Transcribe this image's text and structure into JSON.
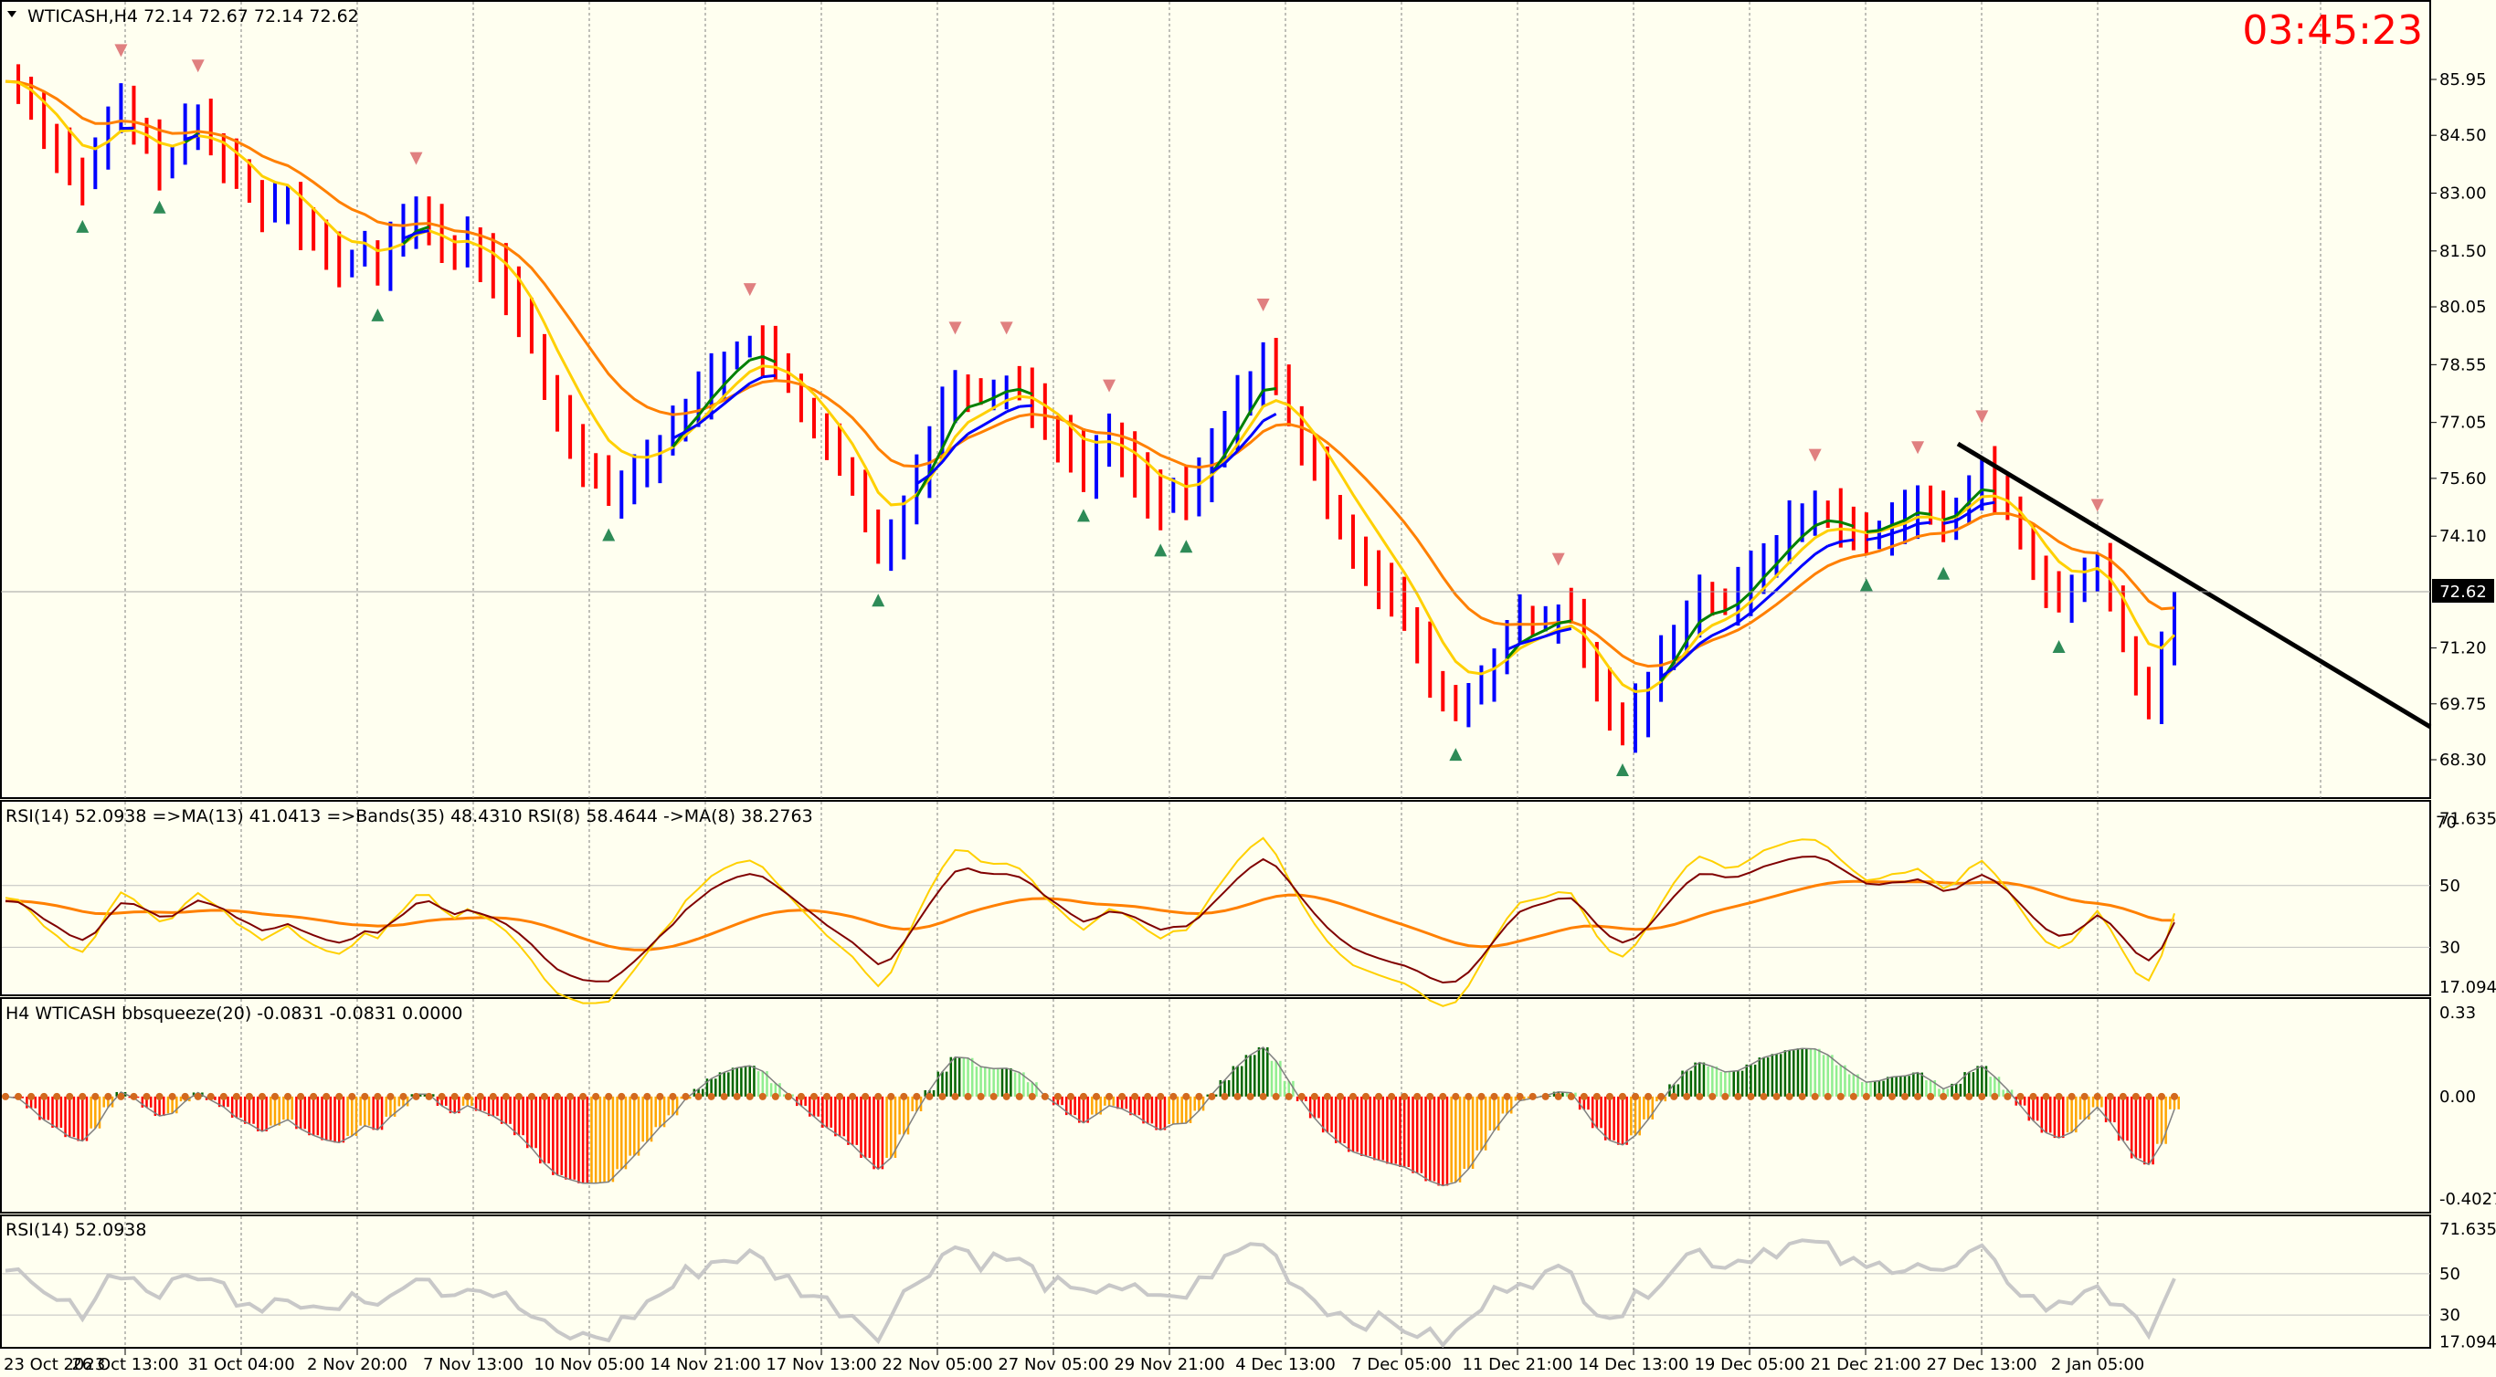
{
  "main_panel": {
    "header": "WTICASH,H4  72.14 72.67 72.14 72.62",
    "timer": "03:45:23",
    "current_price": "72.62",
    "price_min": 67.4,
    "price_max": 87.3,
    "ticks": [
      "85.95",
      "84.50",
      "83.00",
      "81.50",
      "80.05",
      "78.55",
      "77.05",
      "75.60",
      "74.10",
      "72.62",
      "71.20",
      "69.75",
      "68.30"
    ],
    "tick_values": [
      85.95,
      84.5,
      83.0,
      81.5,
      80.05,
      78.55,
      77.05,
      75.6,
      74.1,
      72.62,
      71.2,
      69.75,
      68.3
    ]
  },
  "rsi_panel": {
    "header": "RSI(14) 52.0938  =>MA(13) 41.0413  =>Bands(35) 48.4310  RSI(8) 58.4644  ->MA(8) 38.2763",
    "ticks": [
      "71.6354",
      "50",
      "30",
      "17.0949"
    ],
    "tick_values": [
      71.6354,
      50,
      30,
      17.0949
    ],
    "top_label": "70",
    "top_label_value": 70,
    "min": 15,
    "max": 76
  },
  "squeeze_panel": {
    "header": "H4 WTICASH bbsqueeze(20) -0.0831 -0.0831 0.0000",
    "ticks": [
      "0.33",
      "0.00",
      "-0.4027"
    ],
    "tick_values": [
      0.33,
      0.0,
      -0.4027
    ],
    "min": -0.45,
    "max": 0.37
  },
  "rsi2_panel": {
    "header": "RSI(14) 52.0938",
    "ticks": [
      "71.6354",
      "50",
      "30",
      "17.0949"
    ],
    "tick_values": [
      71.6354,
      50,
      30,
      17.0949
    ],
    "min": 15,
    "max": 76
  },
  "time_labels": [
    "23 Oct 2023",
    "26 Oct 13:00",
    "31 Oct 04:00",
    "2 Nov 20:00",
    "7 Nov 13:00",
    "10 Nov 05:00",
    "14 Nov 21:00",
    "17 Nov 13:00",
    "22 Nov 05:00",
    "27 Nov 05:00",
    "29 Nov 21:00",
    "4 Dec 13:00",
    "7 Dec 05:00",
    "11 Dec 21:00",
    "14 Dec 13:00",
    "19 Dec 05:00",
    "21 Dec 21:00",
    "27 Dec 13:00",
    "2 Jan 05:00"
  ],
  "colors": {
    "background": "#fffff0",
    "bear": "#ff0000",
    "bull": "#0000ff",
    "ma_fast": "#ffd000",
    "ma_slow": "#ff8000",
    "ma_green": "#008000",
    "ma_blue": "#0000ff",
    "trendline": "#000000",
    "rsi_main": "#800000",
    "rsi_fast": "#ffd000",
    "rsi_bands": "#ff8000",
    "hist_pos_dark": "#006400",
    "hist_pos_light": "#90ee90",
    "hist_neg_dark": "#ff0000",
    "hist_neg_light": "#ffa500",
    "squeeze_dot": "#d2691e",
    "rsi2_line": "#c8c8c8"
  },
  "chart_data": {
    "type": "candlestick",
    "symbol": "WTICASH",
    "timeframe": "H4",
    "ohlc_last": {
      "open": 72.14,
      "high": 72.67,
      "low": 72.14,
      "close": 72.62
    },
    "close_path": [
      85.9,
      85.8,
      85.2,
      84.6,
      84.2,
      83.6,
      83.3,
      83.9,
      84.8,
      85.3,
      84.7,
      84.2,
      83.8,
      84.0,
      84.6,
      84.9,
      84.3,
      84.0,
      83.4,
      83.1,
      82.6,
      82.9,
      83.0,
      82.2,
      81.8,
      81.4,
      81.1,
      81.3,
      81.6,
      81.0,
      81.7,
      82.0,
      82.5,
      82.3,
      81.6,
      81.3,
      81.8,
      81.3,
      81.0,
      80.5,
      79.8,
      79.0,
      78.0,
      77.2,
      76.7,
      76.1,
      75.7,
      75.3,
      75.6,
      75.8,
      76.1,
      76.5,
      76.8,
      77.5,
      77.8,
      78.3,
      78.6,
      78.9,
      79.1,
      78.9,
      78.4,
      78.0,
      77.5,
      77.0,
      76.4,
      75.9,
      75.3,
      74.4,
      73.6,
      74.1,
      75.0,
      75.8,
      76.6,
      77.4,
      78.1,
      78.0,
      77.7,
      77.9,
      78.1,
      78.0,
      77.6,
      77.0,
      76.7,
      76.2,
      75.8,
      76.3,
      76.6,
      76.2,
      75.8,
      75.3,
      74.9,
      75.2,
      75.0,
      75.6,
      76.3,
      76.9,
      77.6,
      78.2,
      78.7,
      78.0,
      77.2,
      76.4,
      75.7,
      75.0,
      74.4,
      73.8,
      73.4,
      72.9,
      72.4,
      71.9,
      71.2,
      70.4,
      69.8,
      69.6,
      69.9,
      70.4,
      71.0,
      71.5,
      71.9,
      71.8,
      71.9,
      72.1,
      72.0,
      71.0,
      70.1,
      69.5,
      69.2,
      69.6,
      70.2,
      70.9,
      71.6,
      72.2,
      72.6,
      72.4,
      72.3,
      72.6,
      73.1,
      73.6,
      73.9,
      74.3,
      74.6,
      74.8,
      74.7,
      74.4,
      74.2,
      74.0,
      74.3,
      74.6,
      74.7,
      75.0,
      74.6,
      74.3,
      74.8,
      75.5,
      75.8,
      75.2,
      74.7,
      74.0,
      73.3,
      72.7,
      72.4,
      72.6,
      73.1,
      73.5,
      72.3,
      71.3,
      70.3,
      69.9,
      70.9,
      72.4
    ]
  }
}
